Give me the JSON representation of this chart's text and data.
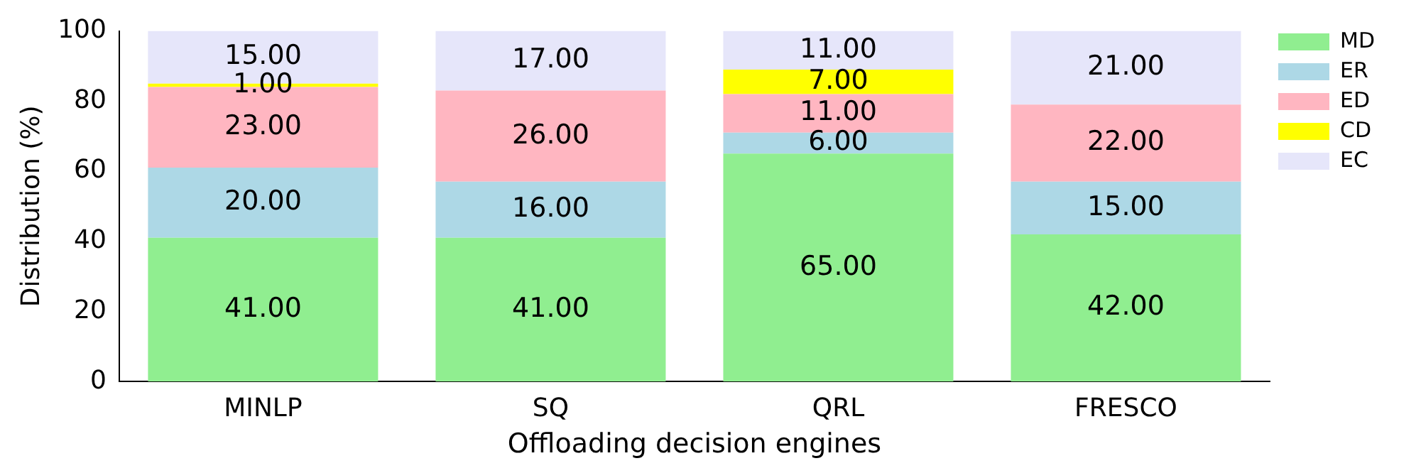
{
  "chart_data": {
    "type": "bar",
    "stacked": true,
    "xlabel": "Offloading decision engines",
    "ylabel": "Distribution (%)",
    "categories": [
      "MINLP",
      "SQ",
      "QRL",
      "FRESCO"
    ],
    "ylim": [
      0,
      100
    ],
    "yticks": [
      0,
      20,
      40,
      60,
      80,
      100
    ],
    "grid": false,
    "legend": "top right",
    "series": [
      {
        "name": "MD",
        "color": "#90ee90",
        "values": [
          41,
          41,
          65,
          42
        ],
        "value_labels": [
          "41.00",
          "41.00",
          "65.00",
          "42.00"
        ]
      },
      {
        "name": "ER",
        "color": "#add8e6",
        "values": [
          20,
          16,
          6,
          15
        ],
        "value_labels": [
          "20.00",
          "16.00",
          "6.00",
          "15.00"
        ]
      },
      {
        "name": "ED",
        "color": "#ffb6c1",
        "values": [
          23,
          26,
          11,
          22
        ],
        "value_labels": [
          "23.00",
          "26.00",
          "11.00",
          "22.00"
        ]
      },
      {
        "name": "CD",
        "color": "#ffff00",
        "values": [
          1,
          0,
          7,
          0
        ],
        "value_labels": [
          "1.00",
          null,
          "7.00",
          null
        ]
      },
      {
        "name": "EC",
        "color": "#e6e6fa",
        "values": [
          15,
          17,
          11,
          21
        ],
        "value_labels": [
          "15.00",
          "17.00",
          "11.00",
          "21.00"
        ]
      }
    ]
  }
}
